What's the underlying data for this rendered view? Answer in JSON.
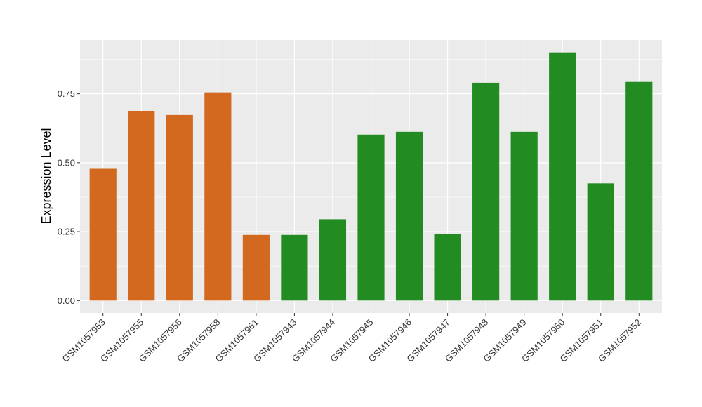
{
  "chart_data": {
    "type": "bar",
    "title": "",
    "xlabel": "",
    "ylabel": "Expression Level",
    "ylim": [
      -0.045,
      0.945
    ],
    "yticks": [
      0.0,
      0.25,
      0.5,
      0.75
    ],
    "ytick_labels": [
      "0.00",
      "0.25",
      "0.50",
      "0.75"
    ],
    "grid": true,
    "legend": "none",
    "categories": [
      "GSM1057953",
      "GSM1057955",
      "GSM1057956",
      "GSM1057958",
      "GSM1057961",
      "GSM1057943",
      "GSM1057944",
      "GSM1057945",
      "GSM1057946",
      "GSM1057947",
      "GSM1057948",
      "GSM1057949",
      "GSM1057950",
      "GSM1057951",
      "GSM1057952"
    ],
    "values": [
      0.478,
      0.688,
      0.673,
      0.755,
      0.238,
      0.238,
      0.295,
      0.602,
      0.612,
      0.24,
      0.79,
      0.612,
      0.9,
      0.425,
      0.793
    ],
    "group": [
      "a",
      "a",
      "a",
      "a",
      "a",
      "b",
      "b",
      "b",
      "b",
      "b",
      "b",
      "b",
      "b",
      "b",
      "b"
    ],
    "colors": {
      "a": "#D2691E",
      "b": "#228B22"
    },
    "panel_background": "#EBEBEB",
    "gridline_color": "#FFFFFF"
  }
}
